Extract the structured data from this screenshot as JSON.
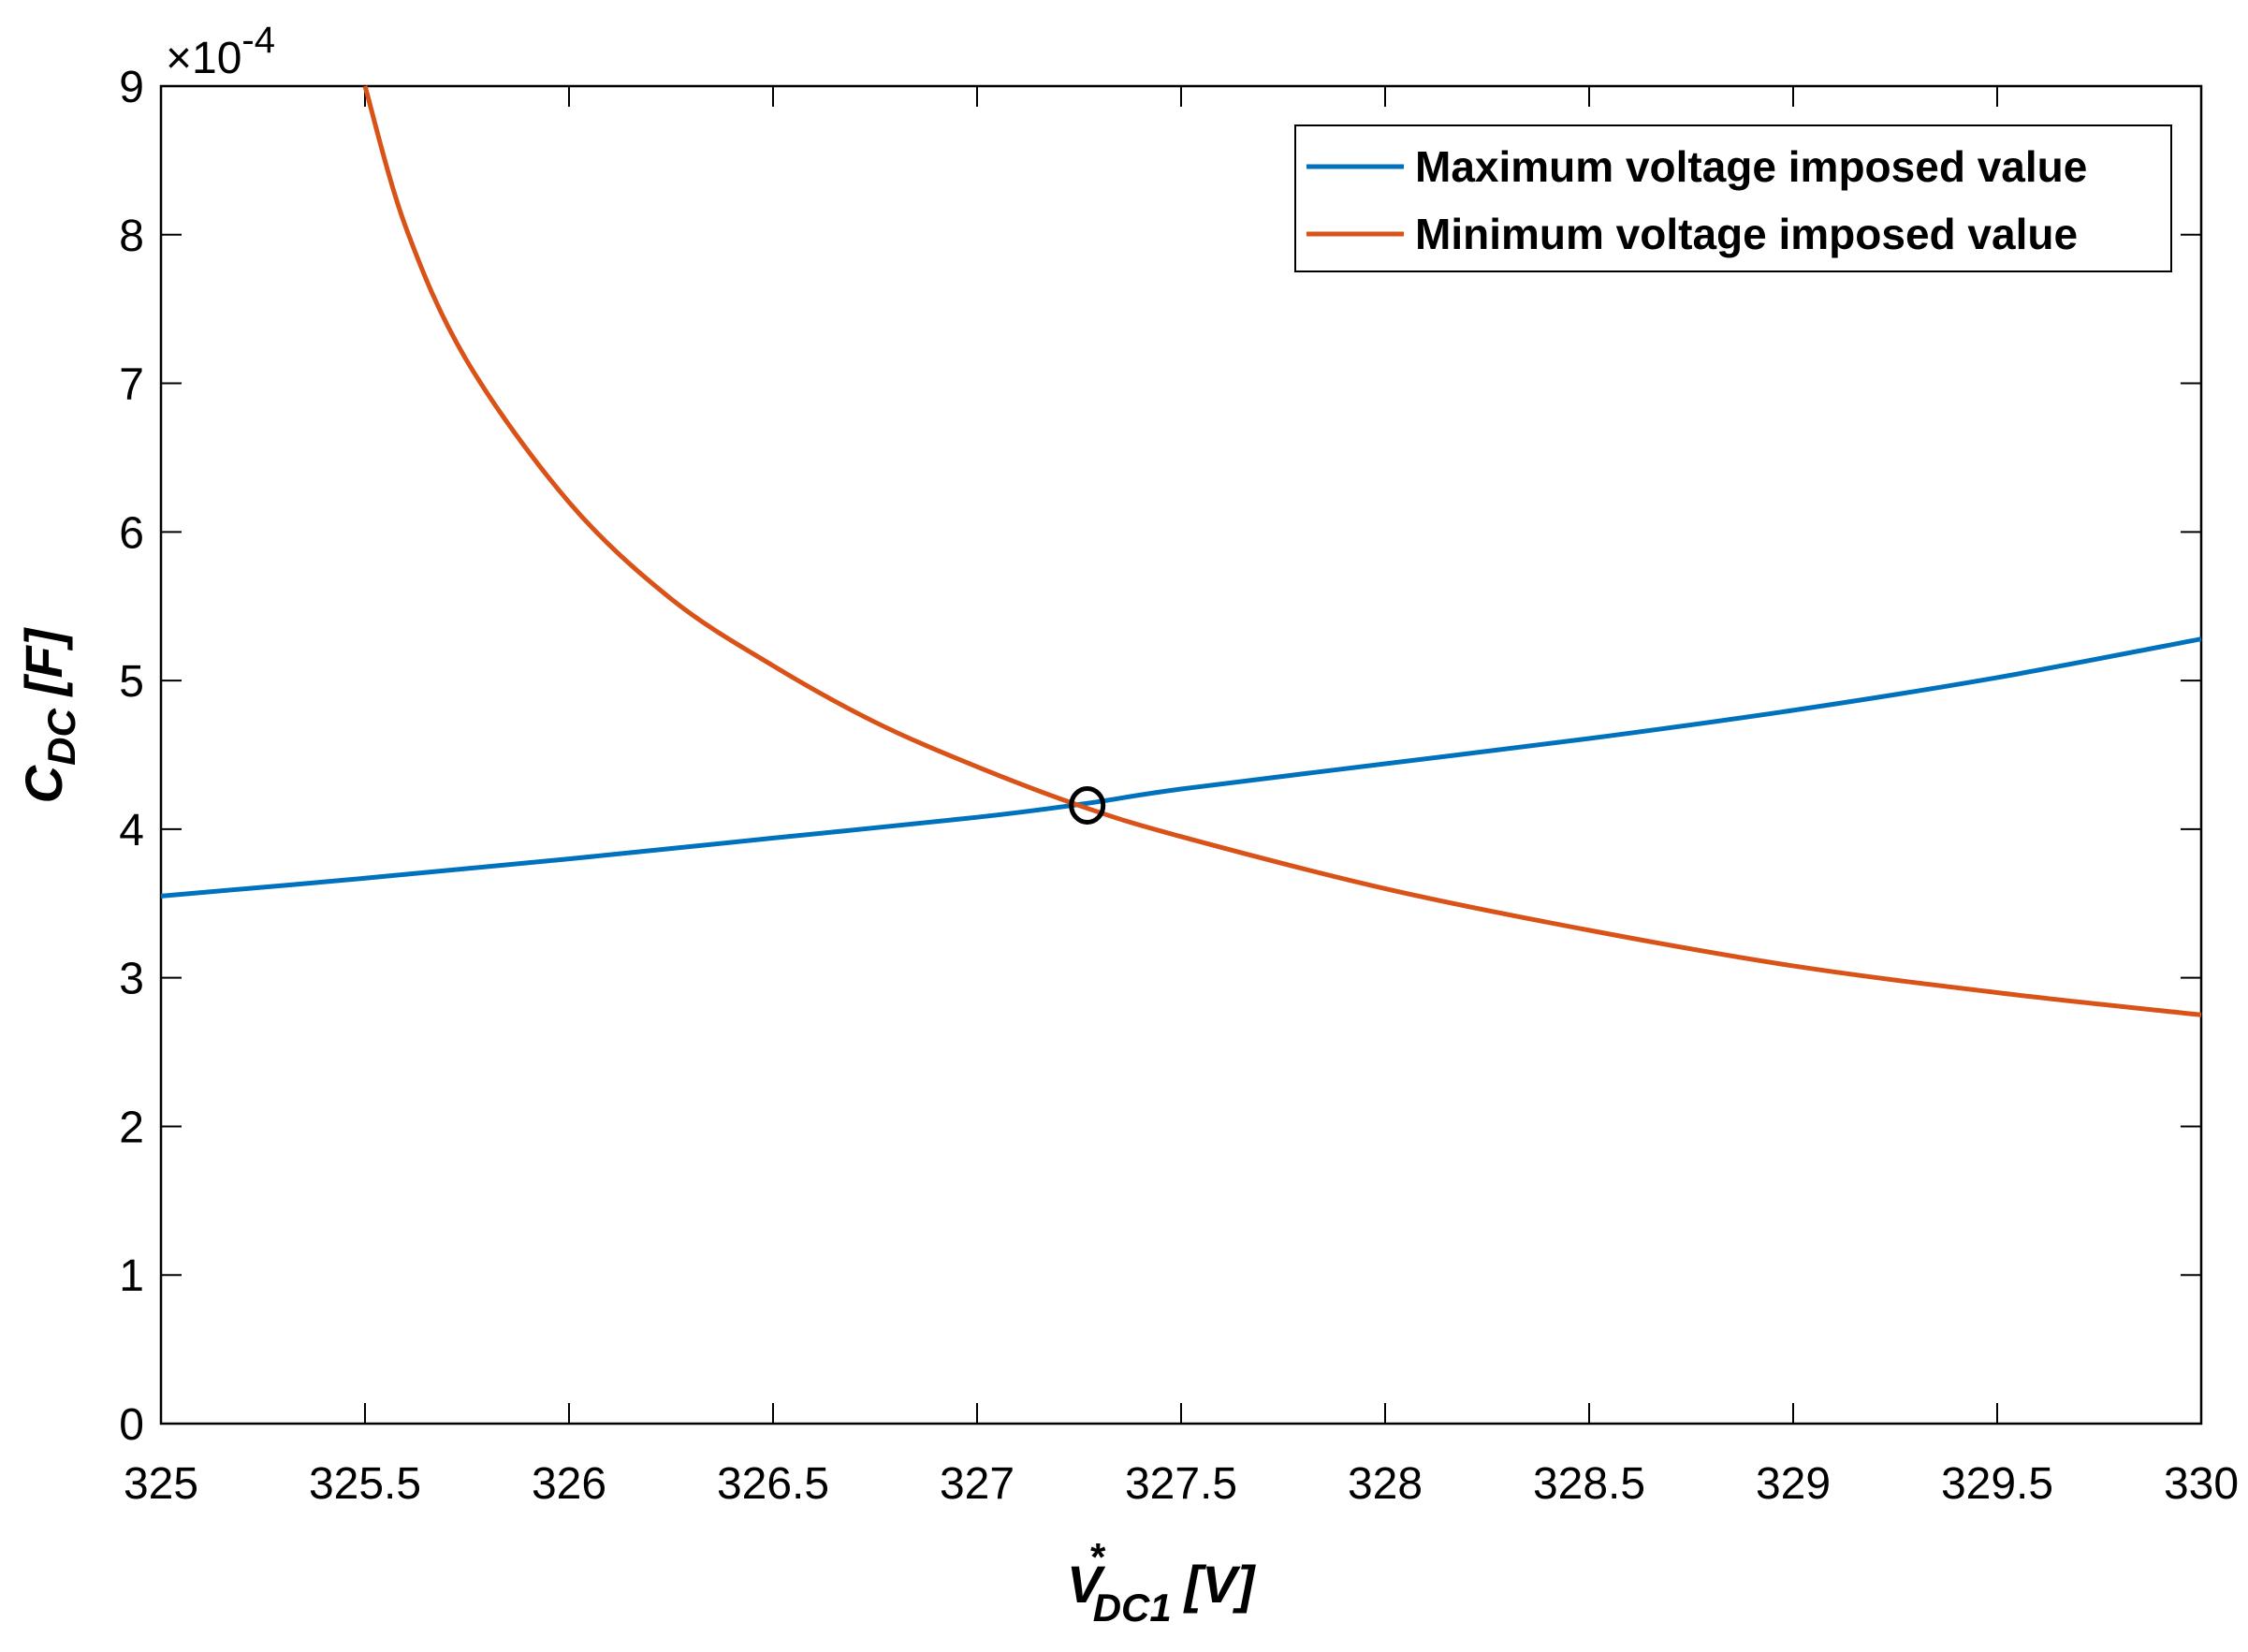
{
  "chart_data": {
    "type": "line",
    "title": "",
    "xlabel": {
      "main": "V",
      "superscript": "*",
      "subscript": "DC1",
      "unit": "[V]"
    },
    "ylabel": {
      "main": "C",
      "subscript": "DC",
      "unit": "[F]"
    },
    "xlim": [
      325,
      330
    ],
    "ylim": [
      0,
      9
    ],
    "y_exponent_label": "×10",
    "y_exponent_power": "-4",
    "xticks": [
      "325",
      "325.5",
      "326",
      "326.5",
      "327",
      "327.5",
      "328",
      "328.5",
      "329",
      "329.5",
      "330"
    ],
    "yticks": [
      "0",
      "1",
      "2",
      "3",
      "4",
      "5",
      "6",
      "7",
      "8",
      "9"
    ],
    "grid": false,
    "legend_position": "top-right",
    "series": [
      {
        "name": "Maximum voltage imposed value",
        "color": "#0072BD",
        "x": [
          325,
          325.5,
          326,
          326.5,
          327,
          327.26,
          327.5,
          328,
          328.5,
          329,
          329.5,
          330
        ],
        "y": [
          3.55,
          3.67,
          3.8,
          3.94,
          4.08,
          4.17,
          4.27,
          4.44,
          4.61,
          4.8,
          5.02,
          5.28
        ]
      },
      {
        "name": "Minimum voltage imposed value",
        "color": "#D95319",
        "x": [
          325.5,
          325.6,
          325.75,
          326,
          326.25,
          326.5,
          326.75,
          327,
          327.26,
          327.5,
          328,
          328.5,
          329,
          329.5,
          330
        ],
        "y": [
          9.0,
          8.05,
          7.15,
          6.2,
          5.55,
          5.1,
          4.72,
          4.42,
          4.15,
          3.95,
          3.6,
          3.32,
          3.08,
          2.9,
          2.75
        ]
      }
    ],
    "annotations": [
      {
        "type": "circle-marker",
        "x": 327.27,
        "y": 4.16,
        "color": "#000000"
      }
    ]
  }
}
